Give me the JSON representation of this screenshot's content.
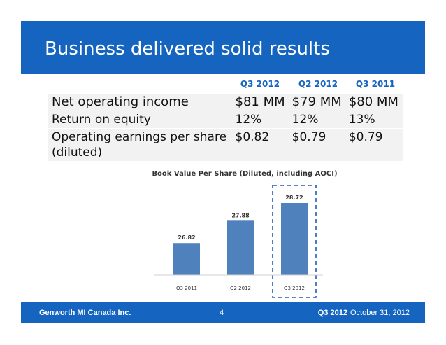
{
  "slide": {
    "title": "Business delivered solid results"
  },
  "table": {
    "columns": [
      "Q3 2012",
      "Q2 2012",
      "Q3 2011"
    ],
    "rows": [
      {
        "label": "Net operating income",
        "values": [
          "$81 MM",
          "$79 MM",
          "$80 MM"
        ]
      },
      {
        "label": "Return on equity",
        "values": [
          "12%",
          "12%",
          "13%"
        ]
      },
      {
        "label": "Operating earnings per share (diluted)",
        "values": [
          "$0.82",
          "$0.79",
          "$0.79"
        ]
      }
    ]
  },
  "chart_data": {
    "type": "bar",
    "title": "Book Value Per Share (Diluted,  including AOCI)",
    "categories": [
      "Q3 2011",
      "Q2 2012",
      "Q3 2012"
    ],
    "values": [
      26.82,
      27.88,
      28.72
    ],
    "highlighted_category": "Q3 2012",
    "colors": {
      "bar": "#4f81bd",
      "highlight_border": "#1f5fb4"
    }
  },
  "footer": {
    "company": "Genworth MI Canada Inc.",
    "page": "4",
    "quarter": "Q3 2012",
    "date": "October 31, 2012"
  }
}
